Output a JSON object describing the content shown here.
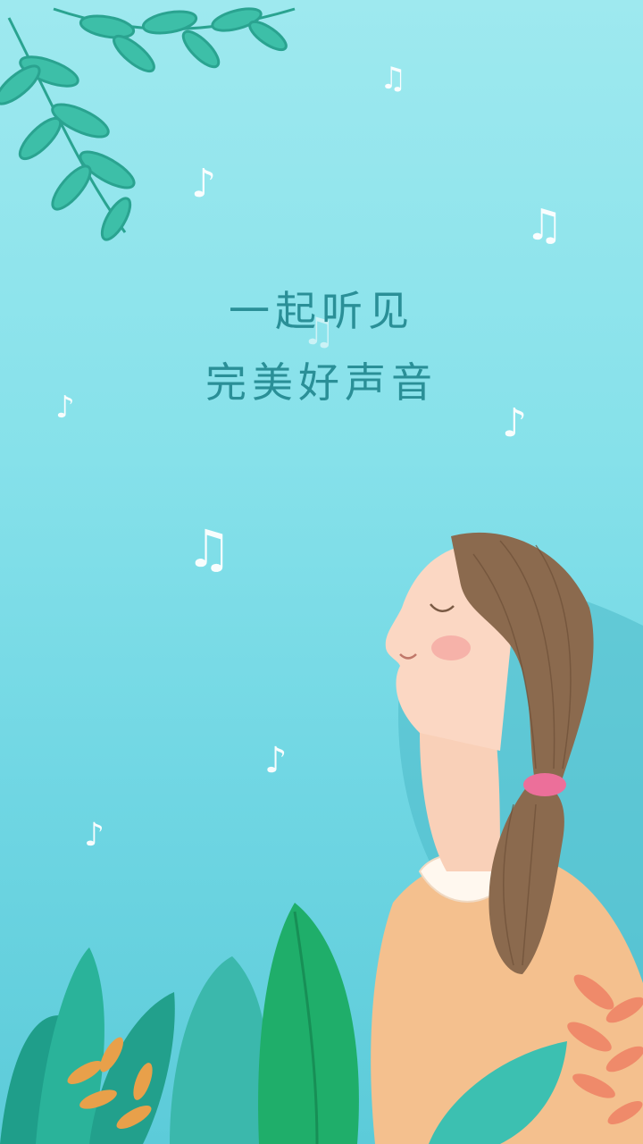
{
  "slogan": {
    "line1": "一起听见",
    "line2": "完美好声音"
  },
  "decor": {
    "music_note_icon": "music-note-icon",
    "leaf_icon": "leaf-icon"
  },
  "colors": {
    "sky_top": "#9ee9ef",
    "sky_bottom": "#5ccbd9",
    "text": "#2a8f97",
    "leaf": "#3dbfa8",
    "sweater": "#f4c08e",
    "hair": "#8b6a4e",
    "skin": "#fbd7c3",
    "hair_tie": "#ec6f9a"
  }
}
